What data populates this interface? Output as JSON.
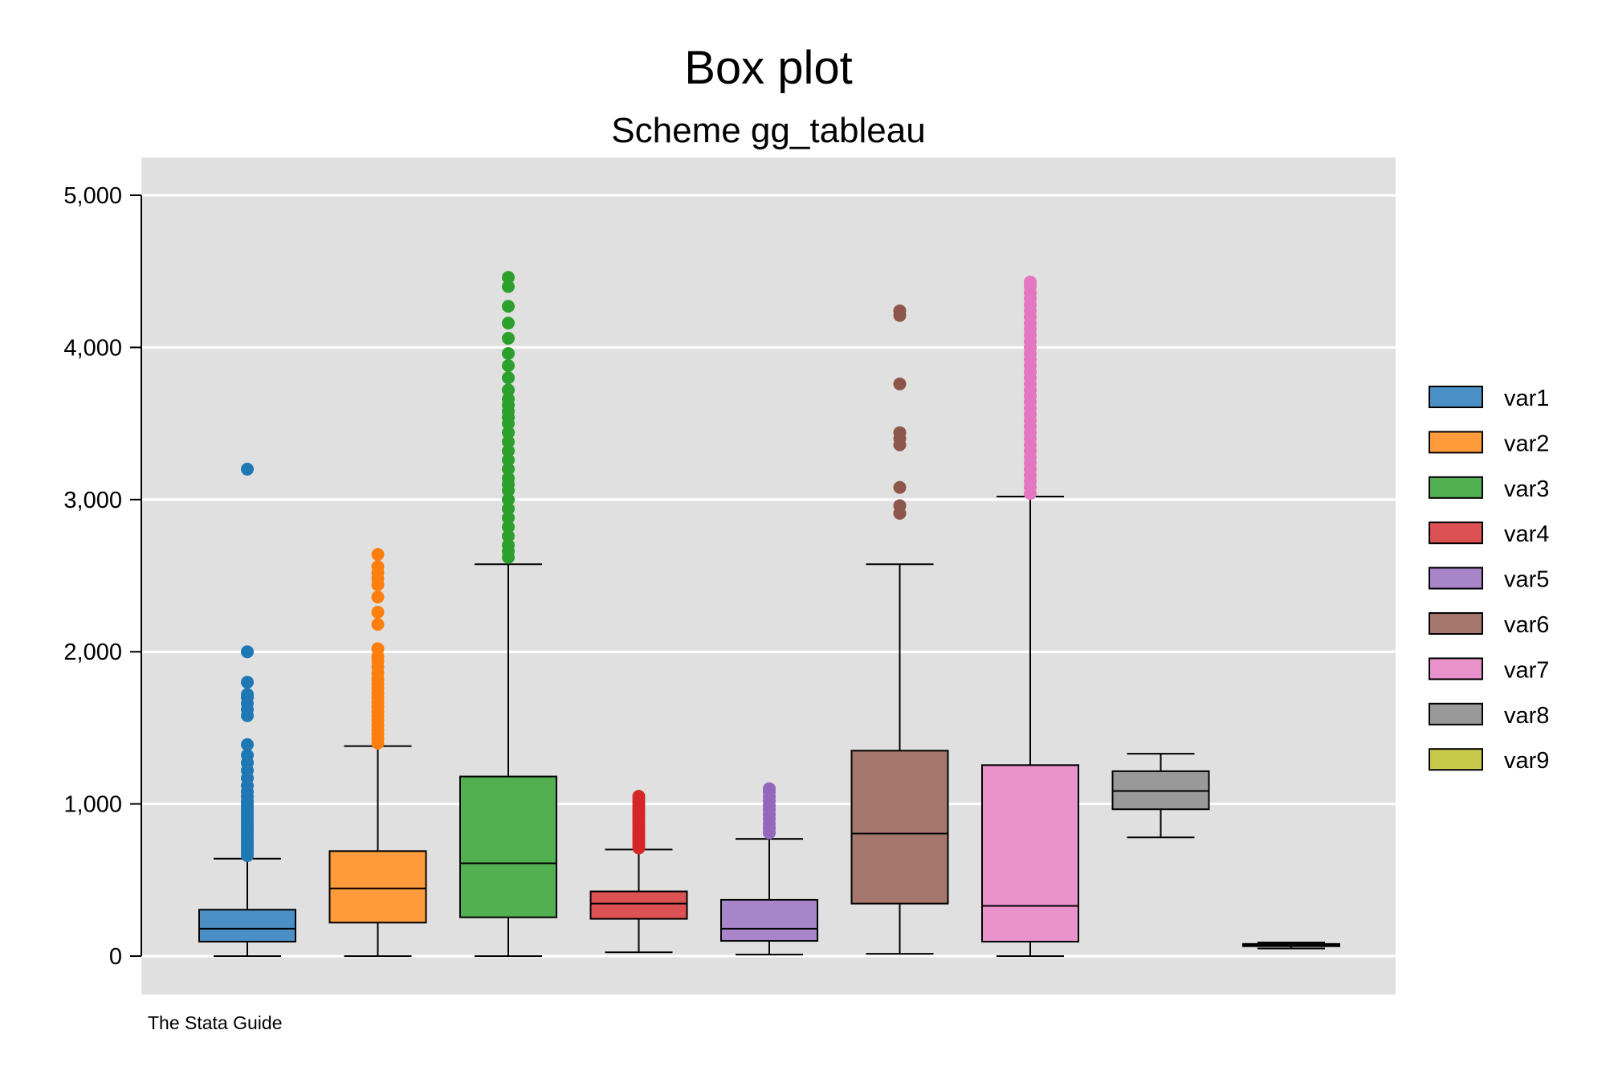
{
  "chart_data": {
    "type": "box",
    "title": "Box plot",
    "subtitle": "Scheme gg_tableau",
    "note": "The Stata Guide",
    "xlabel": "",
    "ylabel": "",
    "ylim": [
      -250,
      5250
    ],
    "yticks": [
      0,
      1000,
      2000,
      3000,
      4000,
      5000
    ],
    "ytick_labels": [
      "0",
      "1,000",
      "2,000",
      "3,000",
      "4,000",
      "5,000"
    ],
    "grid": true,
    "legend_position": "right",
    "series": [
      {
        "name": "var1",
        "color": "#4A8FC6",
        "outlier_color": "#1F77B4",
        "whisker_low": 0,
        "q1": 95,
        "median": 180,
        "q3": 305,
        "whisker_high": 640,
        "outliers": [
          660,
          680,
          700,
          720,
          740,
          760,
          780,
          800,
          820,
          840,
          860,
          880,
          900,
          920,
          940,
          960,
          980,
          1000,
          1020,
          1050,
          1080,
          1120,
          1170,
          1220,
          1270,
          1320,
          1390,
          1580,
          1620,
          1660,
          1700,
          1720,
          1800,
          2000,
          3200
        ]
      },
      {
        "name": "var2",
        "color": "#FF9B3A",
        "outlier_color": "#FF7F0E",
        "whisker_low": 0,
        "q1": 220,
        "median": 445,
        "q3": 690,
        "whisker_high": 1380,
        "outliers": [
          1400,
          1430,
          1460,
          1490,
          1520,
          1550,
          1580,
          1610,
          1640,
          1670,
          1700,
          1730,
          1760,
          1790,
          1820,
          1860,
          1900,
          1940,
          1970,
          2020,
          2180,
          2260,
          2360,
          2440,
          2480,
          2520,
          2560,
          2640
        ]
      },
      {
        "name": "var3",
        "color": "#52AF52",
        "outlier_color": "#2CA02C",
        "whisker_low": 0,
        "q1": 255,
        "median": 610,
        "q3": 1180,
        "whisker_high": 2575,
        "outliers": [
          2620,
          2660,
          2700,
          2760,
          2820,
          2880,
          2940,
          3000,
          3060,
          3100,
          3140,
          3200,
          3260,
          3320,
          3380,
          3440,
          3500,
          3540,
          3580,
          3620,
          3660,
          3720,
          3800,
          3880,
          3960,
          4060,
          4160,
          4270,
          4400,
          4460
        ]
      },
      {
        "name": "var4",
        "color": "#DC5152",
        "outlier_color": "#D62728",
        "whisker_low": 25,
        "q1": 245,
        "median": 345,
        "q3": 425,
        "whisker_high": 700,
        "outliers": [
          710,
          730,
          750,
          770,
          790,
          810,
          830,
          850,
          870,
          890,
          910,
          930,
          950,
          970,
          990,
          1010,
          1030,
          1050
        ]
      },
      {
        "name": "var5",
        "color": "#A884C8",
        "outlier_color": "#9467BD",
        "whisker_low": 10,
        "q1": 100,
        "median": 180,
        "q3": 370,
        "whisker_high": 770,
        "outliers": [
          810,
          840,
          870,
          900,
          930,
          960,
          990,
          1020,
          1050,
          1080,
          1100
        ]
      },
      {
        "name": "var6",
        "color": "#A5776C",
        "outlier_color": "#8C564B",
        "whisker_low": 15,
        "q1": 345,
        "median": 805,
        "q3": 1350,
        "whisker_high": 2575,
        "outliers": [
          2910,
          2960,
          3080,
          3360,
          3400,
          3440,
          3760,
          4210,
          4240
        ]
      },
      {
        "name": "var7",
        "color": "#E992CB",
        "outlier_color": "#E377C2",
        "whisker_low": 0,
        "q1": 95,
        "median": 330,
        "q3": 1255,
        "whisker_high": 3020,
        "outliers": [
          3040,
          3080,
          3120,
          3160,
          3200,
          3240,
          3280,
          3320,
          3360,
          3400,
          3440,
          3480,
          3520,
          3560,
          3600,
          3640,
          3680,
          3720,
          3760,
          3800,
          3840,
          3880,
          3920,
          3960,
          4000,
          4040,
          4080,
          4120,
          4160,
          4200,
          4240,
          4280,
          4320,
          4360,
          4400,
          4430
        ]
      },
      {
        "name": "var8",
        "color": "#999999",
        "outlier_color": "#7F7F7F",
        "whisker_low": 780,
        "q1": 965,
        "median": 1085,
        "q3": 1215,
        "whisker_high": 1330,
        "outliers": []
      },
      {
        "name": "var9",
        "color": "#C8C84A",
        "outlier_color": "#BCBD22",
        "whisker_low": 50,
        "q1": 65,
        "median": 72,
        "q3": 80,
        "whisker_high": 90,
        "outliers": []
      }
    ]
  }
}
